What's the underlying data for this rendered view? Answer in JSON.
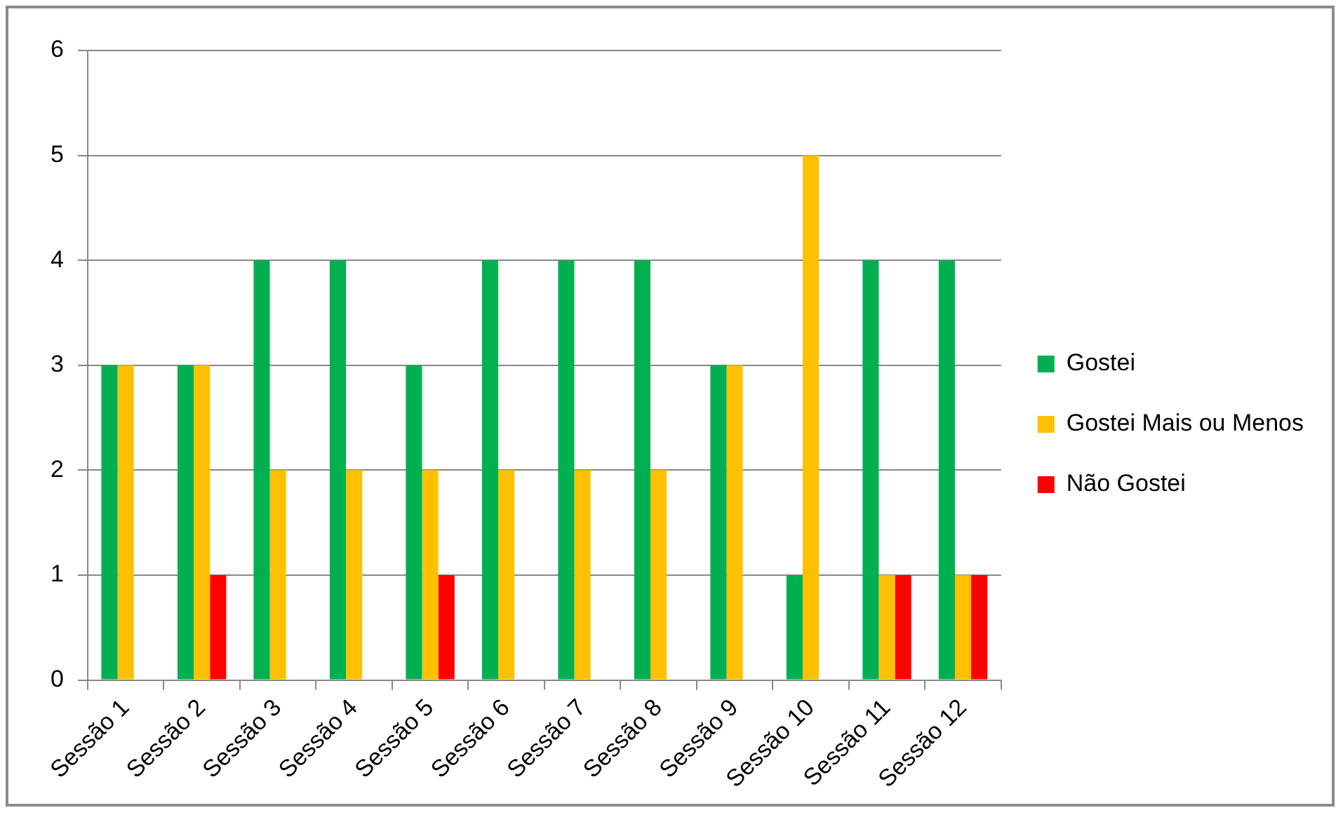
{
  "chart_data": {
    "type": "bar",
    "categories": [
      "Sessão 1",
      "Sessão 2",
      "Sessão 3",
      "Sessão 4",
      "Sessão 5",
      "Sessão 6",
      "Sessão 7",
      "Sessão 8",
      "Sessão 9",
      "Sessão 10",
      "Sessão 11",
      "Sessão 12"
    ],
    "series": [
      {
        "name": "Gostei",
        "color": "#00b050",
        "values": [
          3,
          3,
          4,
          4,
          3,
          4,
          4,
          4,
          3,
          1,
          4,
          4
        ]
      },
      {
        "name": "Gostei Mais ou Menos",
        "color": "#ffc000",
        "values": [
          3,
          3,
          2,
          2,
          2,
          2,
          2,
          2,
          3,
          5,
          1,
          1
        ]
      },
      {
        "name": "Não Gostei",
        "color": "#ff0000",
        "values": [
          0,
          1,
          0,
          0,
          1,
          0,
          0,
          0,
          0,
          0,
          1,
          1
        ]
      }
    ],
    "ylim": [
      0,
      6
    ],
    "yticks": [
      0,
      1,
      2,
      3,
      4,
      5,
      6
    ],
    "grid": "y",
    "legend": "right"
  }
}
